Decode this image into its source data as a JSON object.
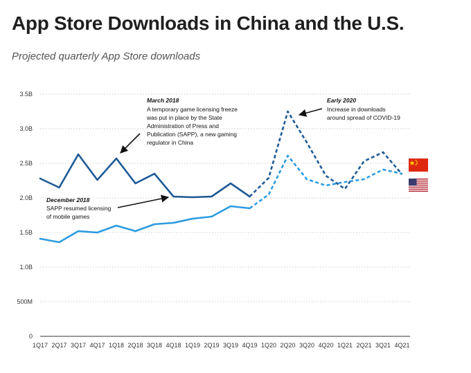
{
  "header": {
    "title": "App Store Downloads in China and the U.S.",
    "subtitle": "Projected quarterly App Store downloads"
  },
  "colors": {
    "china": "#1d5a96",
    "us": "#2c9be0",
    "grid": "#cccccc",
    "axis": "#333333"
  },
  "chart_data": {
    "type": "line",
    "categories": [
      "1Q17",
      "2Q17",
      "3Q17",
      "4Q17",
      "1Q18",
      "2Q18",
      "3Q18",
      "4Q18",
      "1Q19",
      "2Q19",
      "3Q19",
      "4Q19",
      "1Q20",
      "2Q20",
      "3Q20",
      "4Q20",
      "1Q21",
      "2Q21",
      "3Q21",
      "4Q21"
    ],
    "y_ticks": [
      {
        "value": 0,
        "label": "0"
      },
      {
        "value": 0.5,
        "label": "500M"
      },
      {
        "value": 1.0,
        "label": "1.0B"
      },
      {
        "value": 1.5,
        "label": "1.5B"
      },
      {
        "value": 2.0,
        "label": "2.0B"
      },
      {
        "value": 2.5,
        "label": "2.5B"
      },
      {
        "value": 3.0,
        "label": "3.0B"
      },
      {
        "value": 3.5,
        "label": "3.5B"
      }
    ],
    "ylim": [
      0,
      3.5
    ],
    "y_unit": "billions",
    "grid": true,
    "projection_start_index": 11,
    "series": [
      {
        "key": "china",
        "legend_icon": "china-flag-icon",
        "values": [
          2.28,
          2.15,
          2.63,
          2.26,
          2.57,
          2.21,
          2.35,
          2.02,
          2.01,
          2.02,
          2.21,
          2.02,
          2.29,
          3.25,
          2.8,
          2.32,
          2.13,
          2.53,
          2.66,
          2.34
        ]
      },
      {
        "key": "us",
        "legend_icon": "us-flag-icon",
        "values": [
          1.41,
          1.36,
          1.52,
          1.5,
          1.6,
          1.52,
          1.62,
          1.64,
          1.7,
          1.73,
          1.88,
          1.85,
          2.05,
          2.61,
          2.27,
          2.18,
          2.23,
          2.27,
          2.41,
          2.35
        ]
      }
    ],
    "annotations": [
      {
        "key": "march2018",
        "title": "March 2018",
        "lines": [
          "A temporary game licensing freeze",
          "was put in place by the State",
          "Administration of Press and",
          "Publication (SAPP), a new gaming",
          "regulator in China"
        ],
        "target_index": 4,
        "series": "china"
      },
      {
        "key": "december2018",
        "title": "December 2018",
        "lines": [
          "SAPP resumed licensing",
          "of mobile games"
        ],
        "target_index": 7,
        "series": "china"
      },
      {
        "key": "early2020",
        "title": "Early 2020",
        "lines": [
          "Increase in downloads",
          "around spread of COVID-19"
        ],
        "target_index": 13,
        "series": "china"
      }
    ]
  }
}
